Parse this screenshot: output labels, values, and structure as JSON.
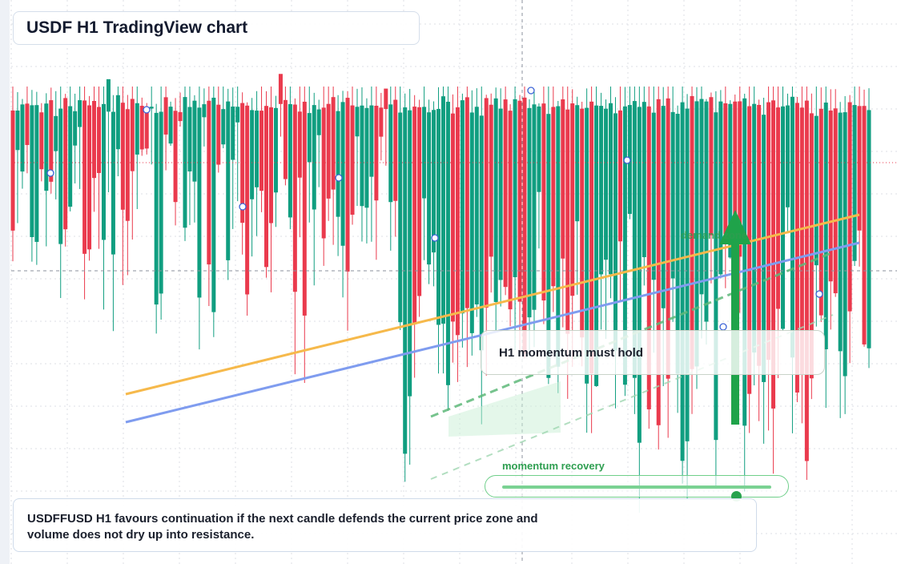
{
  "header": {
    "title": "USDF H1 TradingView chart"
  },
  "annotations": {
    "note": "H1 momentum must hold",
    "demand_zone": "demand zone",
    "slider_label": "momentum recovery",
    "slider_level": 0.87
  },
  "summary": {
    "text": "USDFFUSD H1 favours continuation if the next candle defends the current price zone and volume does not dry up into resistance."
  },
  "colors": {
    "up": "#109e80",
    "down": "#ea3a4d",
    "trend_orange": "#f6b94b",
    "trend_blue": "#7f9cef",
    "accent_green": "#1fa34a",
    "grid": "#dcdfe5"
  },
  "icons": [
    "arrow-up-icon",
    "slider-knob-icon"
  ],
  "chart_data": {
    "type": "candlestick",
    "title": "USDF H1 TradingView chart",
    "series_count": 180,
    "seed": 2471,
    "price_range": [
      0.0,
      1.0
    ],
    "grid": true,
    "trendlines": [
      "orange",
      "blue",
      "green-dashed"
    ]
  }
}
